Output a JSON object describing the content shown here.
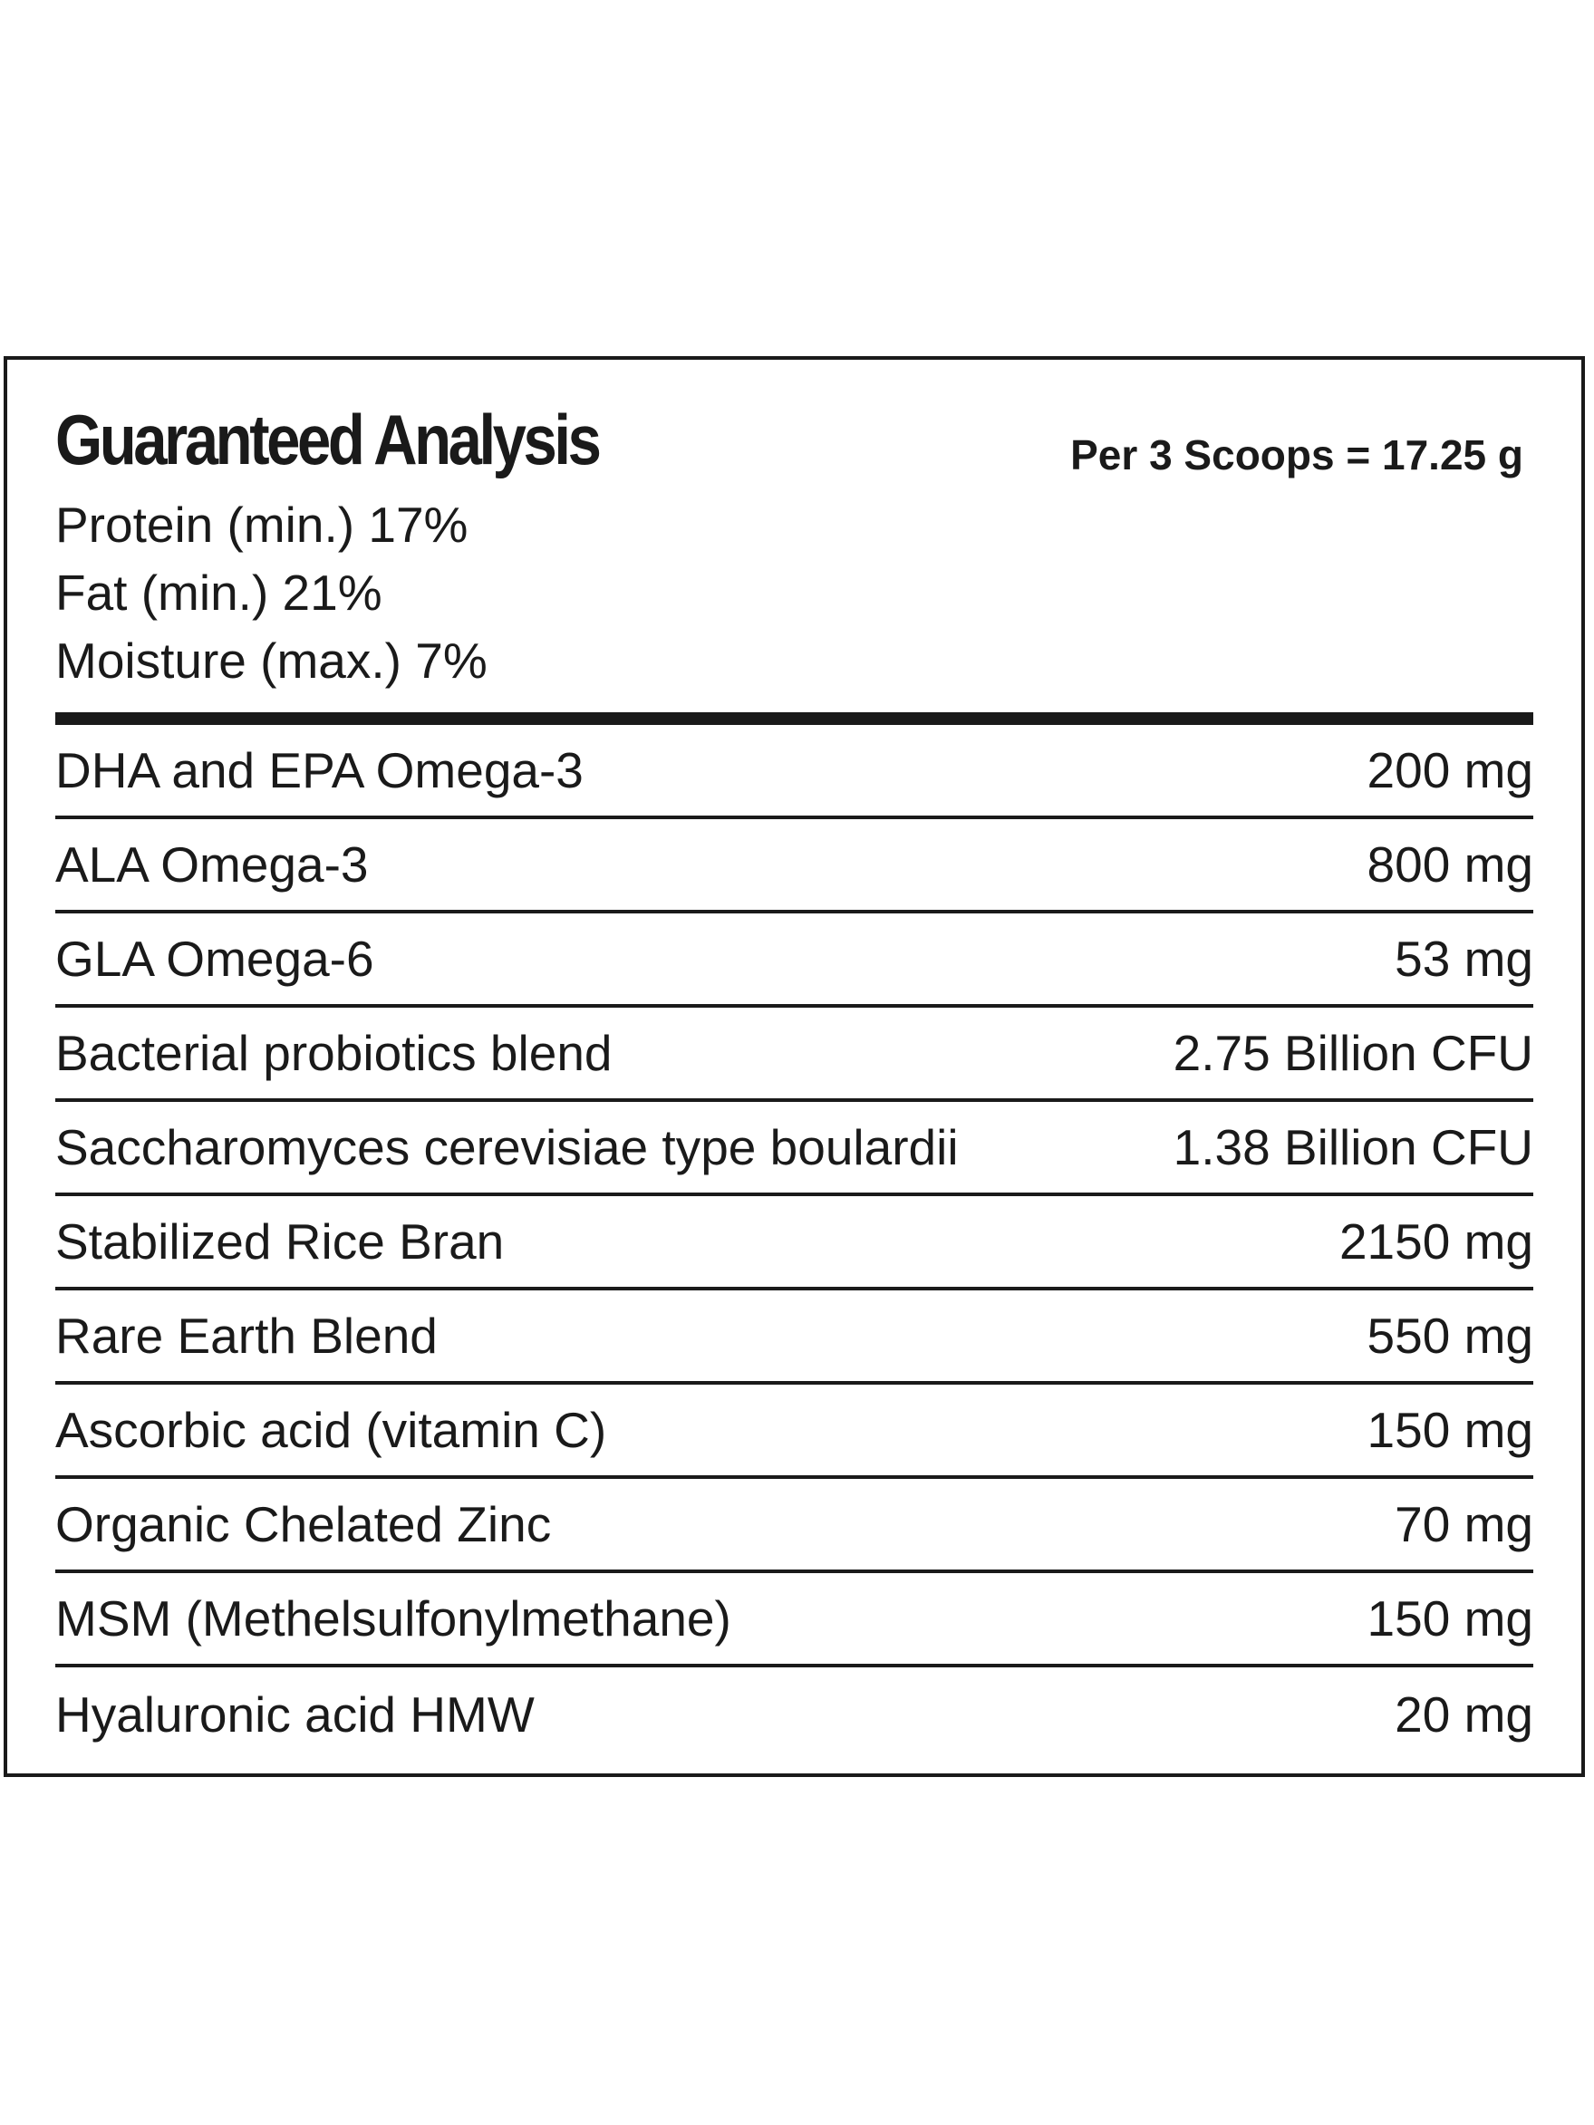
{
  "label": {
    "title": "Guaranteed Analysis",
    "serving": "Per 3 Scoops = 17.25 g",
    "guarantees": [
      "Protein (min.) 17%",
      "Fat (min.) 21%",
      "Moisture (max.) 7%"
    ],
    "ingredients": [
      {
        "name": "DHA and EPA Omega-3",
        "amount": "200 mg"
      },
      {
        "name": "ALA Omega-3",
        "amount": "800 mg"
      },
      {
        "name": "GLA Omega-6",
        "amount": "53 mg"
      },
      {
        "name": "Bacterial probiotics blend",
        "amount": "2.75 Billion CFU"
      },
      {
        "name": "Saccharomyces cerevisiae type boulardii",
        "amount": "1.38 Billion CFU"
      },
      {
        "name": "Stabilized Rice Bran",
        "amount": "2150 mg"
      },
      {
        "name": "Rare Earth Blend",
        "amount": "550 mg"
      },
      {
        "name": "Ascorbic acid (vitamin C)",
        "amount": "150 mg"
      },
      {
        "name": "Organic Chelated Zinc",
        "amount": "70 mg"
      },
      {
        "name": "MSM (Methelsulfonylmethane)",
        "amount": "150 mg"
      },
      {
        "name": "Hyaluronic acid HMW",
        "amount": "20 mg"
      }
    ]
  }
}
